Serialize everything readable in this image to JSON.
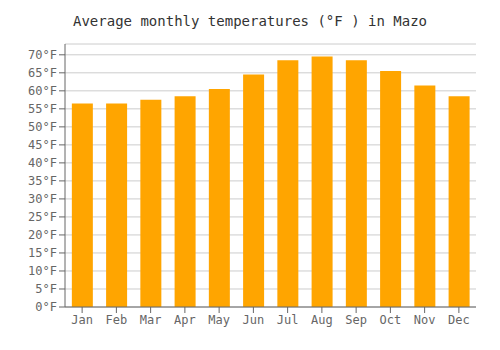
{
  "chart_data": {
    "type": "bar",
    "title": "Average monthly temperatures (°F ) in Mazo",
    "categories": [
      "Jan",
      "Feb",
      "Mar",
      "Apr",
      "May",
      "Jun",
      "Jul",
      "Aug",
      "Sep",
      "Oct",
      "Nov",
      "Dec"
    ],
    "values": [
      56.5,
      56.5,
      57.5,
      58.5,
      60.5,
      64.5,
      68.5,
      69.5,
      68.5,
      65.5,
      61.5,
      58.5
    ],
    "color": "#FFA500",
    "ylim": [
      0,
      73
    ],
    "yticks": [
      {
        "value": 0,
        "label": "0°F"
      },
      {
        "value": 5,
        "label": "5°F"
      },
      {
        "value": 10,
        "label": "10°F"
      },
      {
        "value": 15,
        "label": "15°F"
      },
      {
        "value": 20,
        "label": "20°F"
      },
      {
        "value": 25,
        "label": "25°F"
      },
      {
        "value": 30,
        "label": "30°F"
      },
      {
        "value": 35,
        "label": "35°F"
      },
      {
        "value": 40,
        "label": "40°F"
      },
      {
        "value": 45,
        "label": "45°F"
      },
      {
        "value": 50,
        "label": "50°F"
      },
      {
        "value": 55,
        "label": "55°F"
      },
      {
        "value": 60,
        "label": "60°F"
      },
      {
        "value": 65,
        "label": "65°F"
      },
      {
        "value": 70,
        "label": "70°F"
      }
    ],
    "grid": true
  }
}
